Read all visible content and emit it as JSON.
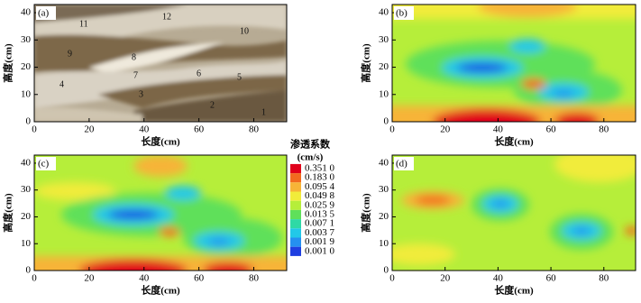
{
  "chart_data": [
    {
      "type": "image",
      "panel_label": "(a)",
      "xlabel": "长度(cm)",
      "ylabel": "高度(cm)",
      "xlim": [
        0,
        92
      ],
      "ylim": [
        0,
        43
      ],
      "xticks": [
        0,
        20,
        40,
        60,
        80
      ],
      "yticks": [
        0,
        10,
        20,
        30,
        40
      ],
      "annotations": [
        "1",
        "2",
        "3",
        "4",
        "5",
        "6",
        "7",
        "8",
        "9",
        "10",
        "11",
        "12"
      ]
    },
    {
      "type": "contour",
      "panel_label": "(b)",
      "xlabel": "长度(cm)",
      "ylabel": "高度(cm)",
      "xlim": [
        0,
        92
      ],
      "ylim": [
        0,
        43
      ],
      "xticks": [
        0,
        20,
        40,
        60,
        80
      ],
      "yticks": [
        0,
        10,
        20,
        30,
        40
      ]
    },
    {
      "type": "contour",
      "panel_label": "(c)",
      "xlabel": "长度(cm)",
      "ylabel": "高度(cm)",
      "xlim": [
        0,
        92
      ],
      "ylim": [
        0,
        43
      ],
      "xticks": [
        0,
        20,
        40,
        60,
        80
      ],
      "yticks": [
        0,
        10,
        20,
        30,
        40
      ],
      "legend": {
        "title": "渗透系数",
        "unit": "(cm/s)",
        "levels": [
          {
            "label": "0.351 0",
            "color": "#e0001a"
          },
          {
            "label": "0.183 0",
            "color": "#f26a1f"
          },
          {
            "label": "0.095 4",
            "color": "#f7b437"
          },
          {
            "label": "0.049 8",
            "color": "#f1ec3a"
          },
          {
            "label": "0.025 9",
            "color": "#b6ee3a"
          },
          {
            "label": "0.013 5",
            "color": "#5fe05a"
          },
          {
            "label": "0.007 1",
            "color": "#2fd9a5"
          },
          {
            "label": "0.003 7",
            "color": "#22c8e8"
          },
          {
            "label": "0.001 9",
            "color": "#2590f0"
          },
          {
            "label": "0.001 0",
            "color": "#1f3fe0"
          }
        ]
      }
    },
    {
      "type": "contour",
      "panel_label": "(d)",
      "xlabel": "长度(cm)",
      "ylabel": "高度(cm)",
      "xlim": [
        0,
        92
      ],
      "ylim": [
        0,
        43
      ],
      "xticks": [
        0,
        20,
        40,
        60,
        80
      ],
      "yticks": [
        0,
        10,
        20,
        30,
        40
      ]
    }
  ]
}
